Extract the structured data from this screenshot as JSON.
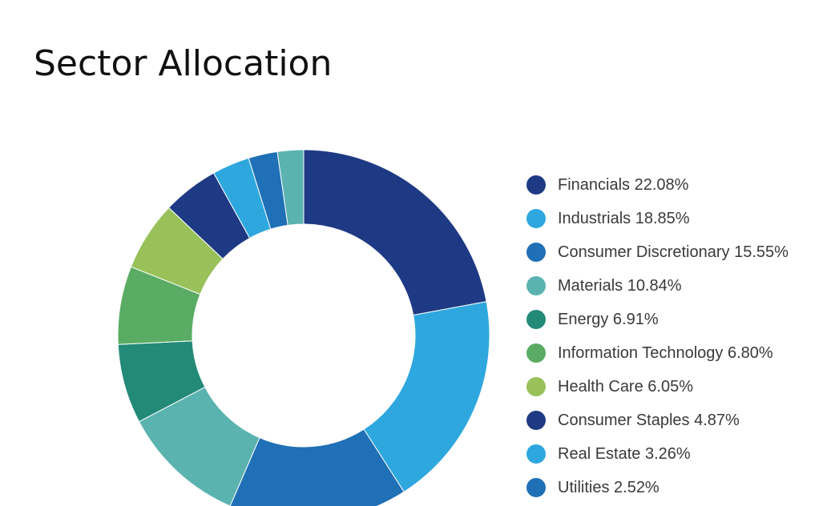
{
  "chart_data": {
    "type": "pie",
    "title": "Sector Allocation",
    "legend_position": "right",
    "categories": [
      "Financials",
      "Industrials",
      "Consumer Discretionary",
      "Materials",
      "Energy",
      "Information Technology",
      "Health Care",
      "Consumer Staples",
      "Real Estate",
      "Utilities"
    ],
    "value_labels": [
      "22.08%",
      "18.85%",
      "15.55%",
      "10.84%",
      "6.91%",
      "6.80%",
      "6.05%",
      "4.87%",
      "3.26%",
      "2.52%"
    ],
    "values": [
      22.08,
      18.85,
      15.55,
      10.84,
      6.91,
      6.8,
      6.05,
      4.87,
      3.26,
      2.52
    ],
    "colors": [
      "#1f3a84",
      "#2ea7df",
      "#1f70b6",
      "#5bb3b0",
      "#238a78",
      "#5aac64",
      "#98c15a",
      "#1f3a84",
      "#2ea7df",
      "#1f70b6"
    ],
    "extra_slice": {
      "value": 2.27,
      "color": "#5bb3b0"
    }
  }
}
